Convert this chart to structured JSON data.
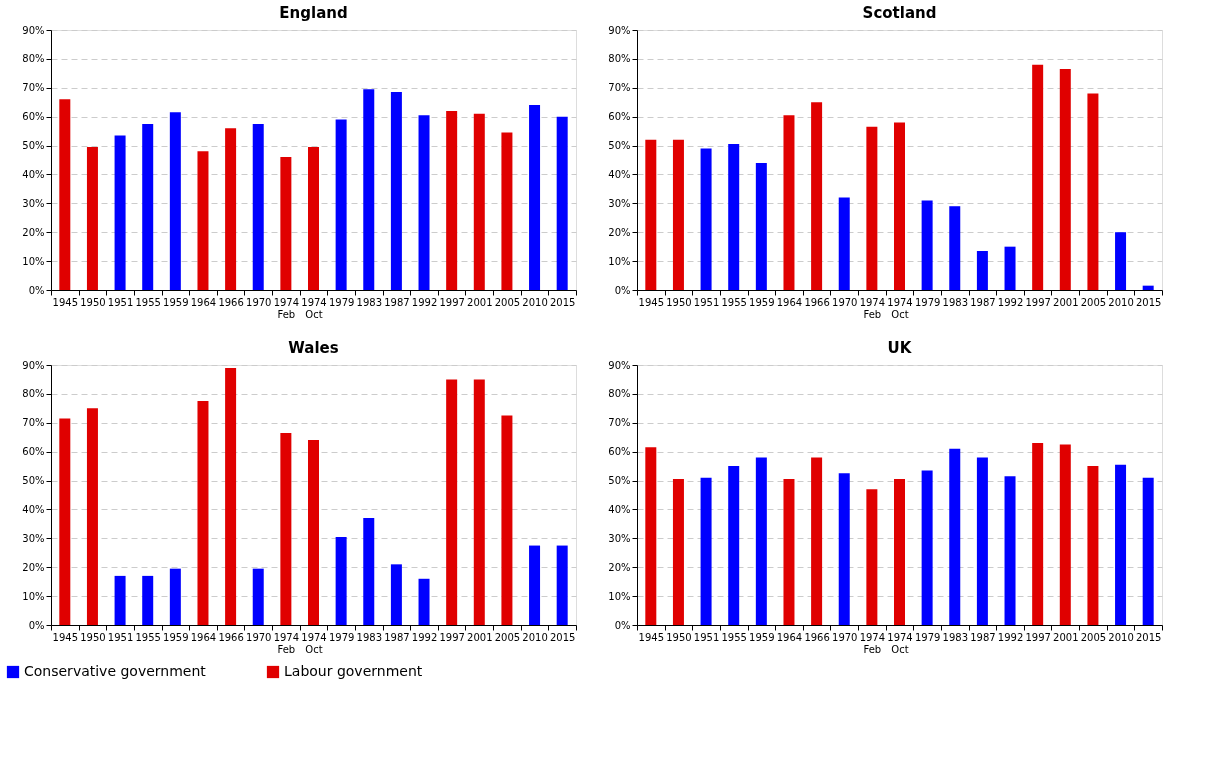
{
  "chart_data": [
    {
      "type": "bar",
      "title": "England",
      "categories": [
        "1945",
        "1950",
        "1951",
        "1955",
        "1959",
        "1964",
        "1966",
        "1970",
        "1974 Feb",
        "1974 Oct",
        "1979",
        "1983",
        "1987",
        "1992",
        "1997",
        "2001",
        "2005",
        "2010",
        "2015"
      ],
      "series": [
        {
          "color": "#0000ff",
          "values": [
            null,
            null,
            53.5,
            57.5,
            61.5,
            null,
            null,
            57.5,
            null,
            null,
            59,
            69.5,
            68.5,
            60.5,
            null,
            null,
            null,
            64,
            60
          ]
        },
        {
          "color": "#e00000",
          "values": [
            66,
            49.5,
            null,
            null,
            null,
            48,
            56,
            null,
            46,
            49.5,
            null,
            null,
            null,
            null,
            62,
            61,
            54.5,
            null,
            null
          ]
        }
      ],
      "ylim": [
        0,
        90
      ],
      "yticks": [
        {
          "value": 0,
          "label": "0%"
        },
        {
          "value": 10,
          "label": "10%"
        },
        {
          "value": 20,
          "label": "20%"
        },
        {
          "value": 30,
          "label": "30%"
        },
        {
          "value": 40,
          "label": "40%"
        },
        {
          "value": 50,
          "label": "50%"
        },
        {
          "value": 60,
          "label": "60%"
        },
        {
          "value": 70,
          "label": "70%"
        },
        {
          "value": 80,
          "label": "80%"
        },
        {
          "value": 90,
          "label": "90%"
        }
      ],
      "grid": "y"
    },
    {
      "type": "bar",
      "title": "Scotland",
      "categories": [
        "1945",
        "1950",
        "1951",
        "1955",
        "1959",
        "1964",
        "1966",
        "1970",
        "1974 Feb",
        "1974 Oct",
        "1979",
        "1983",
        "1987",
        "1992",
        "1997",
        "2001",
        "2005",
        "2010",
        "2015"
      ],
      "series": [
        {
          "color": "#0000ff",
          "values": [
            null,
            null,
            49,
            50.5,
            44,
            null,
            null,
            32,
            null,
            null,
            31,
            29,
            13.5,
            15,
            null,
            null,
            null,
            20,
            1.5
          ]
        },
        {
          "color": "#e00000",
          "values": [
            52,
            52,
            null,
            null,
            null,
            60.5,
            65,
            null,
            56.5,
            58,
            null,
            null,
            null,
            null,
            78,
            76.5,
            68,
            null,
            null
          ]
        }
      ],
      "ylim": [
        0,
        90
      ],
      "yticks": [
        {
          "value": 0,
          "label": "0%"
        },
        {
          "value": 10,
          "label": "10%"
        },
        {
          "value": 20,
          "label": "20%"
        },
        {
          "value": 30,
          "label": "30%"
        },
        {
          "value": 40,
          "label": "40%"
        },
        {
          "value": 50,
          "label": "50%"
        },
        {
          "value": 60,
          "label": "60%"
        },
        {
          "value": 70,
          "label": "70%"
        },
        {
          "value": 80,
          "label": "80%"
        },
        {
          "value": 90,
          "label": "90%"
        }
      ],
      "grid": "y"
    },
    {
      "type": "bar",
      "title": "Wales",
      "categories": [
        "1945",
        "1950",
        "1951",
        "1955",
        "1959",
        "1964",
        "1966",
        "1970",
        "1974 Feb",
        "1974 Oct",
        "1979",
        "1983",
        "1987",
        "1992",
        "1997",
        "2001",
        "2005",
        "2010",
        "2015"
      ],
      "series": [
        {
          "name": "Conservative government",
          "color": "#0000ff",
          "values": [
            null,
            null,
            17,
            17,
            19.5,
            null,
            null,
            19.5,
            null,
            null,
            30.5,
            37,
            21,
            16,
            null,
            null,
            null,
            27.5,
            27.5
          ]
        },
        {
          "name": "Labour government",
          "color": "#e00000",
          "values": [
            71.5,
            75,
            null,
            null,
            null,
            77.5,
            89,
            null,
            66.5,
            64,
            null,
            null,
            null,
            null,
            85,
            85,
            72.5,
            null,
            null
          ]
        }
      ],
      "ylim": [
        0,
        90
      ],
      "yticks": [
        {
          "value": 0,
          "label": "0%"
        },
        {
          "value": 10,
          "label": "10%"
        },
        {
          "value": 20,
          "label": "20%"
        },
        {
          "value": 30,
          "label": "30%"
        },
        {
          "value": 40,
          "label": "40%"
        },
        {
          "value": 50,
          "label": "50%"
        },
        {
          "value": 60,
          "label": "60%"
        },
        {
          "value": 70,
          "label": "70%"
        },
        {
          "value": 80,
          "label": "80%"
        },
        {
          "value": 90,
          "label": "90%"
        }
      ],
      "grid": "y",
      "legend": "bottom left"
    },
    {
      "type": "bar",
      "title": "UK",
      "categories": [
        "1945",
        "1950",
        "1951",
        "1955",
        "1959",
        "1964",
        "1966",
        "1970",
        "1974 Feb",
        "1974 Oct",
        "1979",
        "1983",
        "1987",
        "1992",
        "1997",
        "2001",
        "2005",
        "2010",
        "2015"
      ],
      "series": [
        {
          "color": "#0000ff",
          "values": [
            null,
            null,
            51,
            55,
            58,
            null,
            null,
            52.5,
            null,
            null,
            53.5,
            61,
            58,
            51.5,
            null,
            null,
            null,
            55.5,
            51
          ]
        },
        {
          "color": "#e00000",
          "values": [
            61.5,
            50.5,
            null,
            null,
            null,
            50.5,
            58,
            null,
            47,
            50.5,
            null,
            null,
            null,
            null,
            63,
            62.5,
            55,
            null,
            null
          ]
        }
      ],
      "ylim": [
        0,
        90
      ],
      "yticks": [
        {
          "value": 0,
          "label": "0%"
        },
        {
          "value": 10,
          "label": "10%"
        },
        {
          "value": 20,
          "label": "20%"
        },
        {
          "value": 30,
          "label": "30%"
        },
        {
          "value": 40,
          "label": "40%"
        },
        {
          "value": 50,
          "label": "50%"
        },
        {
          "value": 60,
          "label": "60%"
        },
        {
          "value": 70,
          "label": "70%"
        },
        {
          "value": 80,
          "label": "80%"
        },
        {
          "value": 90,
          "label": "90%"
        }
      ],
      "grid": "y"
    }
  ]
}
